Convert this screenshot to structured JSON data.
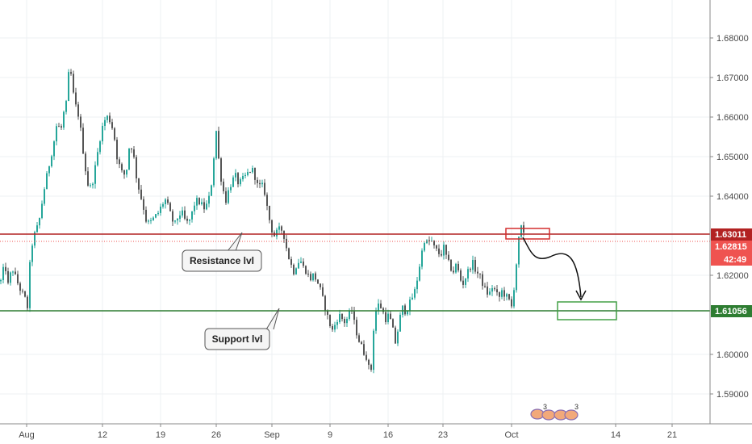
{
  "chart_data": {
    "type": "candlestick",
    "x_tick_labels": [
      "Aug",
      "12",
      "19",
      "26",
      "Sep",
      "9",
      "16",
      "23",
      "Oct",
      "14",
      "21"
    ],
    "y_tick_labels": [
      "1.68000",
      "1.67000",
      "1.66000",
      "1.65000",
      "1.64000",
      "1.62000",
      "1.60000",
      "1.59000"
    ],
    "ylim": [
      1.584,
      1.691
    ],
    "grid": true,
    "resistance_level": "1.63011",
    "support_level": "1.61056",
    "current_price": "1.62815",
    "countdown": "42:49",
    "resistance_label": "Resistance lvl",
    "support_label": "Support lvl",
    "event_markers": [
      "3",
      "3"
    ],
    "price_path": [
      [
        0,
        1.6185
      ],
      [
        5,
        1.623
      ],
      [
        9,
        1.6175
      ],
      [
        14,
        1.622
      ],
      [
        19,
        1.619
      ],
      [
        24,
        1.6165
      ],
      [
        30,
        1.614
      ],
      [
        33,
        1.612
      ],
      [
        37,
        1.626
      ],
      [
        40,
        1.629
      ],
      [
        43,
        1.631
      ],
      [
        47,
        1.633
      ],
      [
        50,
        1.637
      ],
      [
        54,
        1.642
      ],
      [
        58,
        1.646
      ],
      [
        62,
        1.65
      ],
      [
        66,
        1.654
      ],
      [
        70,
        1.659
      ],
      [
        74,
        1.656
      ],
      [
        78,
        1.661
      ],
      [
        82,
        1.664
      ],
      [
        85,
        1.674
      ],
      [
        88,
        1.669
      ],
      [
        91,
        1.664
      ],
      [
        94,
        1.662
      ],
      [
        97,
        1.66
      ],
      [
        100,
        1.655
      ],
      [
        104,
        1.648
      ],
      [
        108,
        1.643
      ],
      [
        112,
        1.642
      ],
      [
        116,
        1.646
      ],
      [
        120,
        1.651
      ],
      [
        124,
        1.656
      ],
      [
        128,
        1.659
      ],
      [
        132,
        1.66
      ],
      [
        136,
        1.659
      ],
      [
        140,
        1.656
      ],
      [
        144,
        1.65
      ],
      [
        148,
        1.647
      ],
      [
        152,
        1.645
      ],
      [
        156,
        1.647
      ],
      [
        160,
        1.654
      ],
      [
        164,
        1.651
      ],
      [
        168,
        1.645
      ],
      [
        172,
        1.641
      ],
      [
        176,
        1.638
      ],
      [
        180,
        1.634
      ],
      [
        184,
        1.633
      ],
      [
        188,
        1.634
      ],
      [
        192,
        1.635
      ],
      [
        196,
        1.636
      ],
      [
        200,
        1.638
      ],
      [
        204,
        1.639
      ],
      [
        208,
        1.637
      ],
      [
        212,
        1.634
      ],
      [
        216,
        1.633
      ],
      [
        220,
        1.635
      ],
      [
        224,
        1.636
      ],
      [
        228,
        1.634
      ],
      [
        232,
        1.633
      ],
      [
        236,
        1.635
      ],
      [
        240,
        1.638
      ],
      [
        244,
        1.639
      ],
      [
        248,
        1.638
      ],
      [
        252,
        1.637
      ],
      [
        256,
        1.638
      ],
      [
        260,
        1.641
      ],
      [
        264,
        1.65
      ],
      [
        266,
        1.659
      ],
      [
        268,
        1.654
      ],
      [
        271,
        1.647
      ],
      [
        275,
        1.642
      ],
      [
        279,
        1.639
      ],
      [
        283,
        1.642
      ],
      [
        287,
        1.644
      ],
      [
        291,
        1.645
      ],
      [
        295,
        1.643
      ],
      [
        299,
        1.644
      ],
      [
        303,
        1.645
      ],
      [
        307,
        1.646
      ],
      [
        311,
        1.647
      ],
      [
        315,
        1.645
      ],
      [
        319,
        1.642
      ],
      [
        323,
        1.643
      ],
      [
        327,
        1.641
      ],
      [
        331,
        1.636
      ],
      [
        335,
        1.632
      ],
      [
        339,
        1.63
      ],
      [
        343,
        1.631
      ],
      [
        347,
        1.632
      ],
      [
        351,
        1.63
      ],
      [
        355,
        1.626
      ],
      [
        359,
        1.623
      ],
      [
        363,
        1.621
      ],
      [
        367,
        1.623
      ],
      [
        371,
        1.624
      ],
      [
        375,
        1.622
      ],
      [
        379,
        1.621
      ],
      [
        383,
        1.619
      ],
      [
        387,
        1.62
      ],
      [
        391,
        1.619
      ],
      [
        395,
        1.617
      ],
      [
        399,
        1.614
      ],
      [
        403,
        1.611
      ],
      [
        407,
        1.608
      ],
      [
        411,
        1.606
      ],
      [
        415,
        1.608
      ],
      [
        419,
        1.61
      ],
      [
        423,
        1.609
      ],
      [
        427,
        1.608
      ],
      [
        431,
        1.61
      ],
      [
        435,
        1.611
      ],
      [
        439,
        1.607
      ],
      [
        443,
        1.604
      ],
      [
        447,
        1.602
      ],
      [
        451,
        1.6
      ],
      [
        455,
        1.599
      ],
      [
        458,
        1.592
      ],
      [
        461,
        1.605
      ],
      [
        465,
        1.611
      ],
      [
        469,
        1.613
      ],
      [
        473,
        1.611
      ],
      [
        477,
        1.609
      ],
      [
        481,
        1.61
      ],
      [
        485,
        1.607
      ],
      [
        489,
        1.603
      ],
      [
        493,
        1.607
      ],
      [
        497,
        1.612
      ],
      [
        501,
        1.611
      ],
      [
        505,
        1.612
      ],
      [
        509,
        1.614
      ],
      [
        513,
        1.616
      ],
      [
        517,
        1.62
      ],
      [
        521,
        1.625
      ],
      [
        525,
        1.629
      ],
      [
        529,
        1.628
      ],
      [
        533,
        1.629
      ],
      [
        537,
        1.627
      ],
      [
        541,
        1.626
      ],
      [
        545,
        1.625
      ],
      [
        549,
        1.627
      ],
      [
        553,
        1.624
      ],
      [
        557,
        1.622
      ],
      [
        561,
        1.621
      ],
      [
        565,
        1.623
      ],
      [
        569,
        1.619
      ],
      [
        573,
        1.618
      ],
      [
        577,
        1.62
      ],
      [
        581,
        1.622
      ],
      [
        585,
        1.623
      ],
      [
        589,
        1.621
      ],
      [
        593,
        1.62
      ],
      [
        597,
        1.618
      ],
      [
        601,
        1.616
      ],
      [
        605,
        1.615
      ],
      [
        609,
        1.617
      ],
      [
        613,
        1.616
      ],
      [
        617,
        1.614
      ],
      [
        621,
        1.616
      ],
      [
        625,
        1.615
      ],
      [
        629,
        1.614
      ],
      [
        633,
        1.612
      ],
      [
        636,
        1.617
      ],
      [
        639,
        1.623
      ],
      [
        642,
        1.629
      ],
      [
        645,
        1.632
      ],
      [
        648,
        1.63
      ],
      [
        650,
        1.6282
      ]
    ],
    "colors": {
      "up": "#26a69a",
      "down": "#555555",
      "resistance": "#b22222",
      "support": "#2e7d32",
      "current_price": "#ef5350"
    }
  }
}
